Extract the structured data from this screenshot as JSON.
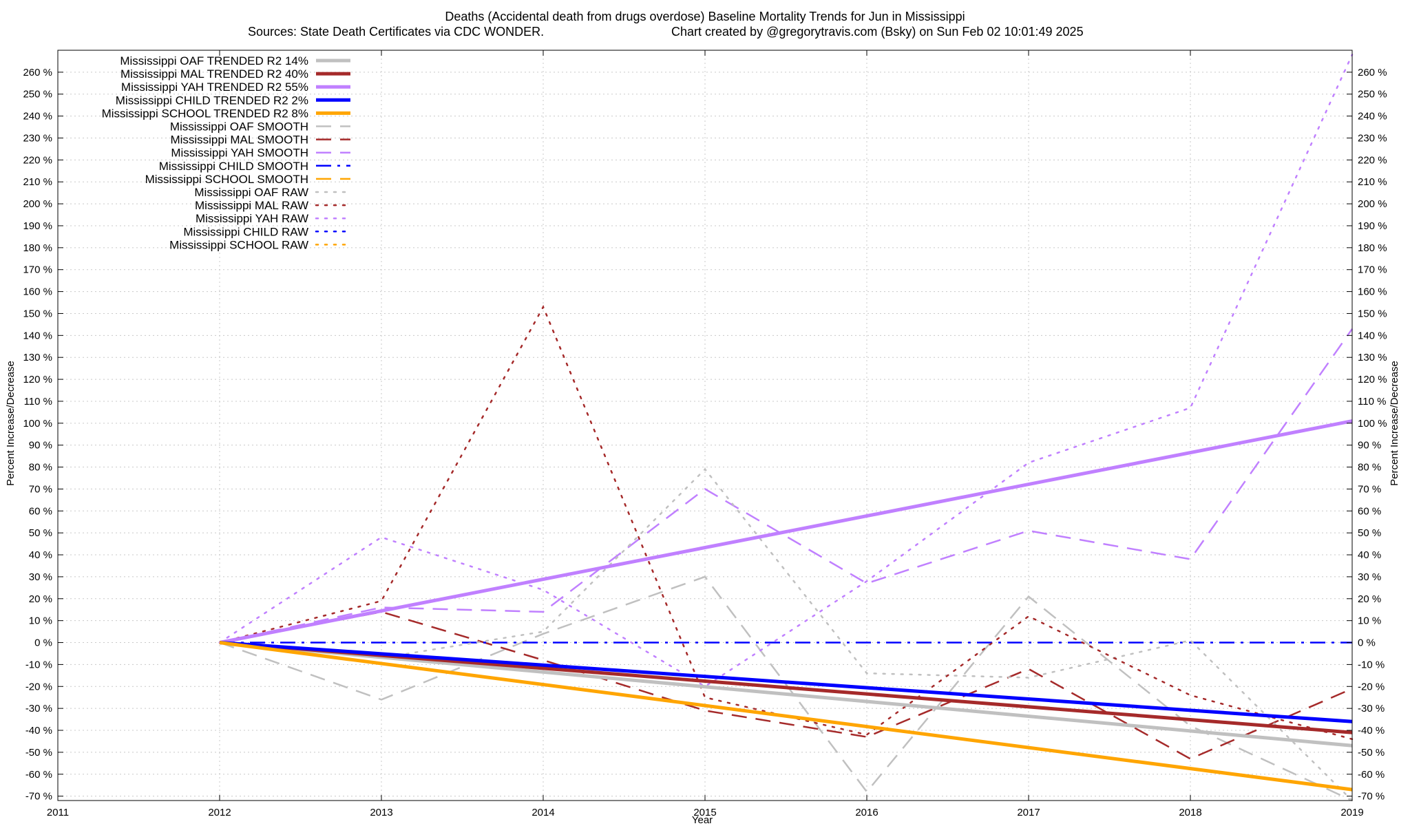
{
  "chart_data": {
    "type": "line",
    "title": "Deaths (Accidental death from drugs overdose)  Baseline Mortality Trends for Jun in Mississippi",
    "subtitle_left": "Sources: State Death Certificates via CDC WONDER.",
    "subtitle_right": "Chart created by @gregorytravis.com (Bsky) on Sun Feb 02 10:01:49 2025",
    "xlabel": "Year",
    "ylabel": "Percent Increase/Decrease",
    "y2label": "Percent Increase/Decrease",
    "xlim": [
      2011,
      2019
    ],
    "ylim": [
      -72,
      270
    ],
    "x_ticks": [
      2011,
      2012,
      2013,
      2014,
      2015,
      2016,
      2017,
      2018,
      2019
    ],
    "y_ticks": [
      -70,
      -60,
      -50,
      -40,
      -30,
      -20,
      -10,
      0,
      10,
      20,
      30,
      40,
      50,
      60,
      70,
      80,
      90,
      100,
      110,
      120,
      130,
      140,
      150,
      160,
      170,
      180,
      190,
      200,
      210,
      220,
      230,
      240,
      250,
      260
    ],
    "y_tick_suffix": " %",
    "grid": true,
    "legend_position": "top-left",
    "series": [
      {
        "name": "Mississippi OAF TRENDED R2  14%",
        "style": "solid",
        "color": "#c0c0c0",
        "width": 5,
        "x": [
          2012,
          2019
        ],
        "values": [
          0,
          -47
        ]
      },
      {
        "name": "Mississippi MAL TRENDED R2  40%",
        "style": "solid",
        "color": "#a52a2a",
        "width": 5,
        "x": [
          2012,
          2019
        ],
        "values": [
          0,
          -41
        ]
      },
      {
        "name": "Mississippi YAH TRENDED R2  55%",
        "style": "solid",
        "color": "#c080ff",
        "width": 5,
        "x": [
          2012,
          2019
        ],
        "values": [
          0,
          101
        ]
      },
      {
        "name": "Mississippi CHILD TRENDED R2   2%",
        "style": "solid",
        "color": "#0000ff",
        "width": 5,
        "x": [
          2012,
          2019
        ],
        "values": [
          0,
          -36
        ]
      },
      {
        "name": "Mississippi SCHOOL TRENDED R2   8%",
        "style": "solid",
        "color": "#ffa500",
        "width": 5,
        "x": [
          2012,
          2019
        ],
        "values": [
          0,
          -67
        ]
      },
      {
        "name": "Mississippi OAF SMOOTH",
        "style": "dashed",
        "color": "#c0c0c0",
        "width": 2.5,
        "x": [
          2012,
          2013,
          2014,
          2015,
          2016,
          2017,
          2018,
          2019
        ],
        "values": [
          0,
          -26,
          4,
          30,
          -68,
          21,
          -38,
          -72
        ]
      },
      {
        "name": "Mississippi MAL SMOOTH",
        "style": "dashed",
        "color": "#a52a2a",
        "width": 2.5,
        "x": [
          2012,
          2013,
          2014,
          2015,
          2016,
          2017,
          2018,
          2019
        ],
        "values": [
          0,
          14,
          -8,
          -31,
          -43,
          -12,
          -53,
          -21
        ]
      },
      {
        "name": "Mississippi YAH SMOOTH",
        "style": "dashed",
        "color": "#c080ff",
        "width": 2.5,
        "x": [
          2012,
          2013,
          2014,
          2015,
          2016,
          2017,
          2018,
          2019
        ],
        "values": [
          0,
          16,
          14,
          70,
          27,
          51,
          38,
          143
        ]
      },
      {
        "name": "Mississippi CHILD SMOOTH",
        "style": "dashdot",
        "color": "#0000ff",
        "width": 2.5,
        "x": [
          2012,
          2013,
          2014,
          2015,
          2016,
          2017,
          2018,
          2019
        ],
        "values": [
          0,
          0,
          0,
          0,
          0,
          0,
          0,
          0
        ]
      },
      {
        "name": "Mississippi SCHOOL SMOOTH",
        "style": "dashed",
        "color": "#ffa500",
        "width": 2.5,
        "x": [],
        "values": []
      },
      {
        "name": "Mississippi OAF RAW",
        "style": "dotted",
        "color": "#c0c0c0",
        "width": 2.5,
        "x": [
          2012,
          2013,
          2014,
          2015,
          2016,
          2017,
          2018,
          2019
        ],
        "values": [
          0,
          -7,
          5,
          79,
          -14,
          -16,
          1,
          -72
        ]
      },
      {
        "name": "Mississippi MAL RAW",
        "style": "dotted",
        "color": "#a52a2a",
        "width": 2.5,
        "x": [
          2012,
          2013,
          2014,
          2015,
          2016,
          2017,
          2018,
          2019
        ],
        "values": [
          0,
          19,
          153,
          -25,
          -42,
          12,
          -24,
          -44
        ]
      },
      {
        "name": "Mississippi YAH RAW",
        "style": "dotted",
        "color": "#c080ff",
        "width": 2.5,
        "x": [
          2012,
          2013,
          2014,
          2015,
          2016,
          2017,
          2018,
          2019
        ],
        "values": [
          0,
          48,
          24,
          -20,
          28,
          82,
          107,
          268
        ]
      },
      {
        "name": "Mississippi CHILD RAW",
        "style": "dotted",
        "color": "#0000ff",
        "width": 2.5,
        "x": [],
        "values": []
      },
      {
        "name": "Mississippi SCHOOL RAW",
        "style": "dotted",
        "color": "#ffa500",
        "width": 2.5,
        "x": [],
        "values": []
      }
    ]
  }
}
